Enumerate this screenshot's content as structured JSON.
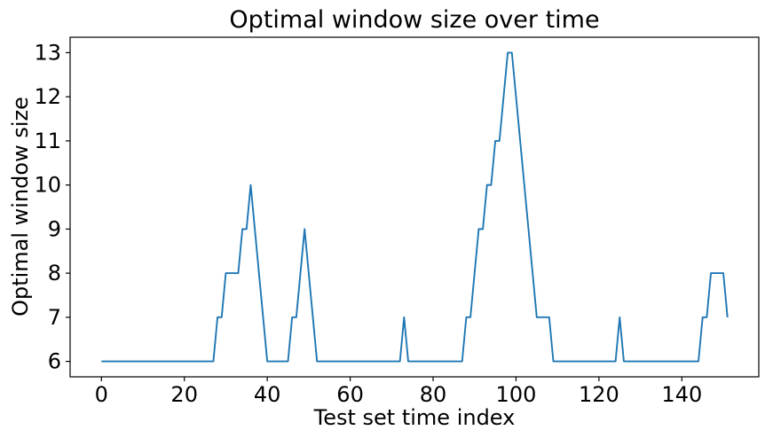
{
  "chart_data": {
    "type": "line",
    "title": "Optimal window size over time",
    "xlabel": "Test set time index",
    "ylabel": "Optimal window size",
    "x_start": 0,
    "x_step": 1,
    "values": [
      6,
      6,
      6,
      6,
      6,
      6,
      6,
      6,
      6,
      6,
      6,
      6,
      6,
      6,
      6,
      6,
      6,
      6,
      6,
      6,
      6,
      6,
      6,
      6,
      6,
      6,
      6,
      6,
      7,
      7,
      8,
      8,
      8,
      8,
      9,
      9,
      10,
      9,
      8,
      7,
      6,
      6,
      6,
      6,
      6,
      6,
      7,
      7,
      8,
      9,
      8,
      7,
      6,
      6,
      6,
      6,
      6,
      6,
      6,
      6,
      6,
      6,
      6,
      6,
      6,
      6,
      6,
      6,
      6,
      6,
      6,
      6,
      6,
      7,
      6,
      6,
      6,
      6,
      6,
      6,
      6,
      6,
      6,
      6,
      6,
      6,
      6,
      6,
      7,
      7,
      8,
      9,
      9,
      10,
      10,
      11,
      11,
      12,
      13,
      13,
      12,
      11,
      10,
      9,
      8,
      7,
      7,
      7,
      7,
      6,
      6,
      6,
      6,
      6,
      6,
      6,
      6,
      6,
      6,
      6,
      6,
      6,
      6,
      6,
      6,
      7,
      6,
      6,
      6,
      6,
      6,
      6,
      6,
      6,
      6,
      6,
      6,
      6,
      6,
      6,
      6,
      6,
      6,
      6,
      6,
      7,
      7,
      8,
      8,
      8,
      8,
      7
    ],
    "xticks": [
      0,
      20,
      40,
      60,
      80,
      100,
      120,
      140
    ],
    "yticks": [
      6,
      7,
      8,
      9,
      10,
      11,
      12,
      13
    ],
    "xlim": [
      -7.55,
      158.55
    ],
    "ylim": [
      5.65,
      13.35
    ],
    "grid": false,
    "legend": null,
    "line_color": "#1f77b4",
    "spine_color": "#000000"
  }
}
